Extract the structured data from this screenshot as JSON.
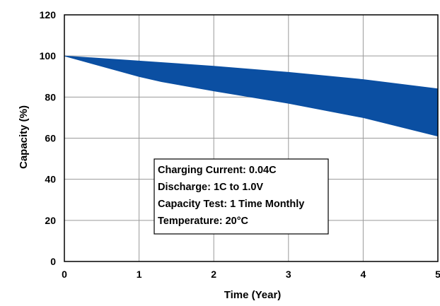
{
  "chart_data": {
    "type": "area",
    "xlabel": "Time (Year)",
    "ylabel": "Capacity (%)",
    "xlim": [
      0,
      5
    ],
    "ylim": [
      0,
      120
    ],
    "x_ticks": [
      "0",
      "1",
      "2",
      "3",
      "4",
      "5"
    ],
    "y_ticks": [
      "0",
      "20",
      "40",
      "60",
      "80",
      "100",
      "120"
    ],
    "grid": true,
    "band_color": "#0b4fa2",
    "series": [
      {
        "role": "upper",
        "x": [
          0,
          1,
          2,
          3,
          4,
          5
        ],
        "values": [
          100,
          97.5,
          95,
          92,
          88.5,
          84
        ]
      },
      {
        "role": "lower",
        "x": [
          0,
          1,
          1.3,
          2,
          3,
          4,
          5
        ],
        "values": [
          100,
          90,
          87.5,
          83,
          77,
          70,
          61
        ]
      }
    ],
    "annotation": [
      "Charging Current: 0.04C",
      "Discharge: 1C to 1.0V",
      "Capacity Test: 1 Time Monthly",
      "Temperature: 20°C"
    ]
  }
}
